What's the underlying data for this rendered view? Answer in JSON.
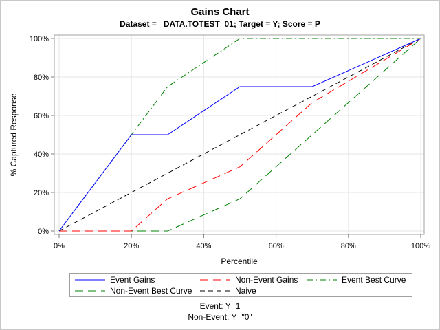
{
  "chart_data": {
    "type": "line",
    "title": "Gains Chart",
    "subtitle": "Dataset = _DATA.TOTEST_01; Target = Y; Score = P",
    "xlabel": "Percentile",
    "ylabel": "% Captured Response",
    "xlim": [
      0,
      100
    ],
    "ylim": [
      0,
      100
    ],
    "x_ticks": [
      "0%",
      "20%",
      "40%",
      "60%",
      "80%",
      "100%"
    ],
    "y_ticks": [
      "0%",
      "20%",
      "40%",
      "60%",
      "80%",
      "100%"
    ],
    "grid": true,
    "legend_position": "bottom",
    "series": [
      {
        "name": "Event Gains",
        "color": "#0000ff",
        "dash": "solid",
        "x": [
          0,
          20,
          30,
          50,
          70,
          100
        ],
        "y": [
          0,
          50,
          50,
          75,
          75,
          100
        ]
      },
      {
        "name": "Non-Event Gains",
        "color": "#ff0000",
        "dash": "long-dash",
        "x": [
          0,
          20,
          30,
          50,
          70,
          100
        ],
        "y": [
          0,
          0,
          16.7,
          33.3,
          66.7,
          100
        ]
      },
      {
        "name": "Event Best Curve",
        "color": "#008000",
        "dash": "dash-dot",
        "x": [
          0,
          20,
          30,
          50,
          100
        ],
        "y": [
          0,
          50,
          75,
          100,
          100
        ]
      },
      {
        "name": "Non-Event Best Curve",
        "color": "#008000",
        "dash": "long-dash",
        "x": [
          0,
          30,
          50,
          100
        ],
        "y": [
          0,
          0,
          16.7,
          100
        ]
      },
      {
        "name": "Naive",
        "color": "#000000",
        "dash": "dash",
        "x": [
          0,
          100
        ],
        "y": [
          0,
          100
        ]
      }
    ]
  },
  "footnotes": {
    "event": "Event:  Y=1",
    "non_event": "Non-Event:  Y=\"0\""
  }
}
